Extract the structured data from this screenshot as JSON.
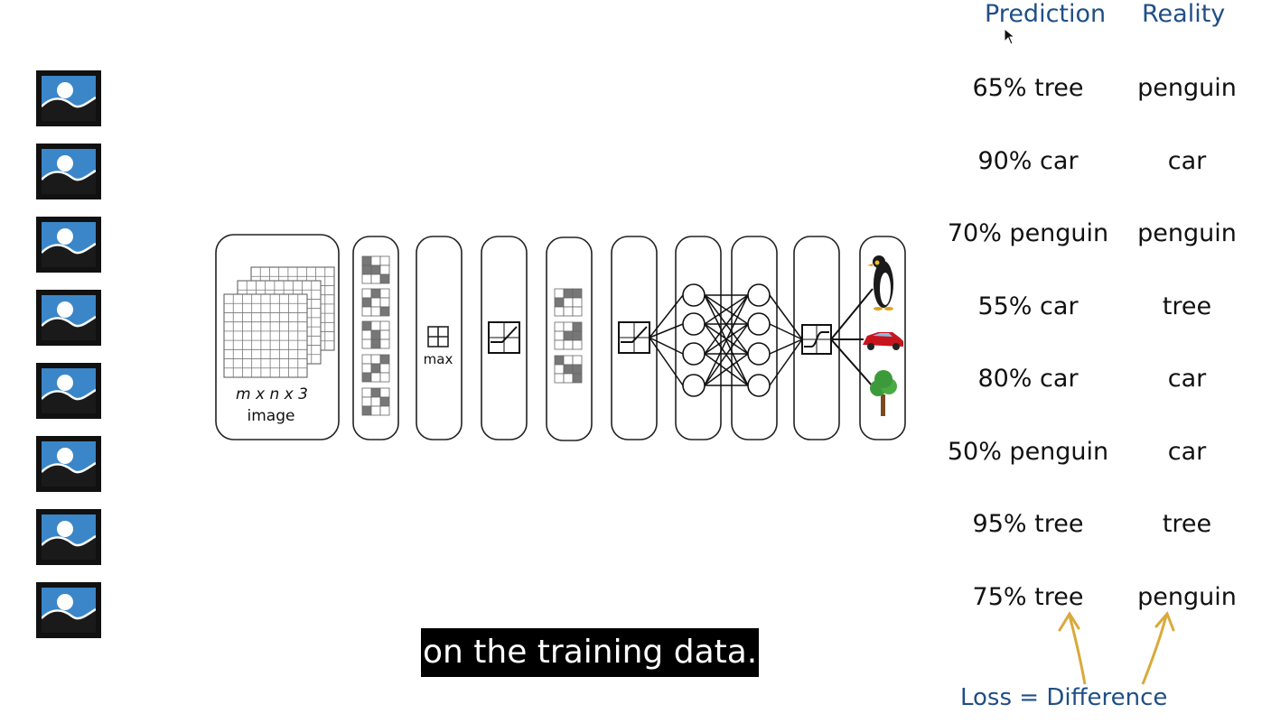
{
  "thumbnails": [
    {
      "icon": "image-icon"
    },
    {
      "icon": "image-icon"
    },
    {
      "icon": "image-icon"
    },
    {
      "icon": "image-icon"
    },
    {
      "icon": "image-icon"
    },
    {
      "icon": "image-icon"
    },
    {
      "icon": "image-icon"
    },
    {
      "icon": "image-icon"
    }
  ],
  "network": {
    "input_dims": "m x n x 3",
    "input_label": "image",
    "pool_label": "max",
    "output_icons": [
      "penguin-icon",
      "car-icon",
      "tree-icon"
    ]
  },
  "table": {
    "prediction_header": "Prediction",
    "reality_header": "Reality",
    "rows": [
      {
        "prediction": "65% tree",
        "reality": "penguin"
      },
      {
        "prediction": "90% car",
        "reality": "car"
      },
      {
        "prediction": "70% penguin",
        "reality": "penguin"
      },
      {
        "prediction": "55% car",
        "reality": "tree"
      },
      {
        "prediction": "80% car",
        "reality": "car"
      },
      {
        "prediction": "50% penguin",
        "reality": "car"
      },
      {
        "prediction": "95% tree",
        "reality": "tree"
      },
      {
        "prediction": "75% tree",
        "reality": "penguin"
      }
    ]
  },
  "loss_label": "Loss = Difference",
  "subtitle": "on the training data.",
  "colors": {
    "header_blue": "#1f4f86",
    "arrow_gold": "#d9a93a",
    "sky_blue": "#3a86c8"
  }
}
